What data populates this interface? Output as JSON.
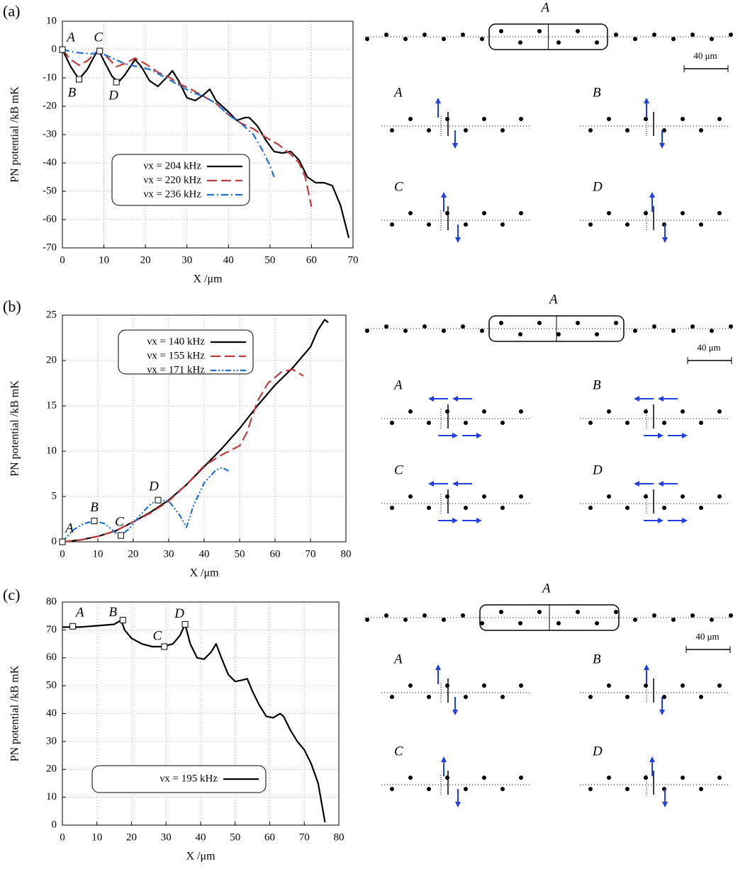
{
  "chart_data": [
    {
      "type": "line",
      "label": "(a)",
      "x_label": "X /μm",
      "y_label": "PN potential /kB mK",
      "xlim": [
        0,
        70
      ],
      "xticks": [
        0,
        10,
        20,
        30,
        40,
        50,
        60,
        70
      ],
      "ylim": [
        -70,
        10
      ],
      "yticks": [
        -70,
        -60,
        -50,
        -40,
        -30,
        -20,
        -10,
        0,
        10
      ],
      "grid": true,
      "series": [
        {
          "name": "νx = 204 kHz",
          "color": "#000000",
          "dash": "solid",
          "x": [
            0,
            2,
            4,
            6,
            8,
            9,
            10,
            12,
            13.5,
            15,
            17.5,
            19,
            21,
            23,
            25,
            26.5,
            28,
            30,
            32,
            34,
            35.5,
            37,
            40,
            42,
            44,
            45,
            47,
            49,
            51,
            53,
            55,
            57,
            59,
            61,
            63,
            65,
            67,
            69
          ],
          "values": [
            0,
            -6,
            -10.5,
            -7,
            -1.5,
            -1,
            -4,
            -9.5,
            -11.5,
            -9,
            -3.5,
            -6,
            -11,
            -13,
            -10,
            -7.5,
            -11,
            -17,
            -18,
            -16,
            -14,
            -18,
            -22,
            -25,
            -24,
            -24,
            -27,
            -32,
            -36,
            -36.5,
            -36,
            -39,
            -45,
            -47,
            -47,
            -48,
            -55,
            -66.5
          ]
        },
        {
          "name": "νx = 220 kHz",
          "color": "#c0393b",
          "dash": "dashed",
          "x": [
            0,
            2,
            4,
            6,
            8,
            9,
            11,
            13,
            15,
            17.5,
            20,
            23,
            26,
            28,
            31,
            34,
            37,
            40,
            43,
            46,
            49,
            52,
            55,
            57,
            58.5,
            60
          ],
          "values": [
            0,
            -3.5,
            -5.5,
            -4,
            -1,
            -0.5,
            -3,
            -6,
            -5,
            -3,
            -5,
            -8,
            -10,
            -12,
            -14,
            -16.5,
            -19,
            -23,
            -26,
            -28,
            -31,
            -33.5,
            -37,
            -40,
            -45,
            -55.5
          ]
        },
        {
          "name": "νx = 236 kHz",
          "color": "#1f6fd0",
          "dash": "dashdot",
          "x": [
            0,
            3,
            7,
            9,
            12,
            15,
            18,
            21,
            25,
            28,
            31,
            34,
            37,
            40,
            43,
            46,
            48,
            50,
            51
          ],
          "values": [
            0,
            -1,
            -1.5,
            -1,
            -3,
            -5,
            -6,
            -7,
            -10,
            -12.5,
            -15,
            -16.5,
            -19,
            -23,
            -26,
            -30,
            -35,
            -41,
            -45
          ]
        }
      ],
      "annotations": [
        {
          "text": "A",
          "x": 0,
          "y": 0
        },
        {
          "text": "B",
          "x": 4,
          "y": -10.5
        },
        {
          "text": "C",
          "x": 9,
          "y": -0.5
        },
        {
          "text": "D",
          "x": 13,
          "y": -11.5
        }
      ]
    },
    {
      "type": "line",
      "label": "(b)",
      "x_label": "X /μm",
      "y_label": "PN potential /kB mK",
      "xlim": [
        0,
        80
      ],
      "xticks": [
        0,
        10,
        20,
        30,
        40,
        50,
        60,
        70,
        80
      ],
      "ylim": [
        0,
        25
      ],
      "yticks": [
        0,
        5,
        10,
        15,
        20,
        25
      ],
      "grid": true,
      "series": [
        {
          "name": "νx = 140 kHz",
          "color": "#000000",
          "dash": "solid",
          "x": [
            0,
            5,
            10,
            15,
            20,
            25,
            30,
            35,
            40,
            45,
            50,
            55,
            60,
            65,
            70,
            72,
            74,
            75
          ],
          "values": [
            0,
            0.2,
            0.6,
            1.2,
            2.2,
            3.3,
            4.6,
            6.3,
            8.3,
            10.3,
            12.5,
            15,
            17.3,
            19.2,
            21.5,
            23.3,
            24.5,
            24.2
          ]
        },
        {
          "name": "νx = 155 kHz",
          "color": "#c0393b",
          "dash": "dashed",
          "x": [
            0,
            5,
            10,
            15,
            20,
            25,
            30,
            35,
            40,
            45,
            50,
            52,
            55,
            58,
            62,
            65,
            68
          ],
          "values": [
            0,
            0.2,
            0.6,
            1.2,
            2.2,
            3.2,
            4.5,
            6.3,
            8.4,
            9.6,
            10.6,
            12,
            15.5,
            17.5,
            18.8,
            19,
            18.3
          ]
        },
        {
          "name": "νx = 171 kHz",
          "color": "#1f6fd0",
          "dash": "dashdotdot",
          "x": [
            0,
            3,
            6,
            9,
            12,
            15,
            16.5,
            19,
            22,
            25,
            27,
            30,
            33,
            35,
            37,
            40,
            43,
            45,
            47
          ],
          "values": [
            0,
            1.3,
            2,
            2.3,
            2,
            1,
            0.7,
            1.5,
            3,
            4.2,
            4.6,
            4.5,
            3,
            1.6,
            4,
            6.5,
            7.8,
            8.2,
            7.8
          ]
        }
      ],
      "annotations": [
        {
          "text": "A",
          "x": 0,
          "y": 0
        },
        {
          "text": "B",
          "x": 9,
          "y": 2.3
        },
        {
          "text": "C",
          "x": 16.5,
          "y": 0.7
        },
        {
          "text": "D",
          "x": 27,
          "y": 4.6
        }
      ]
    },
    {
      "type": "line",
      "label": "(c)",
      "x_label": "X /μm",
      "y_label": "PN potential /kB mK",
      "xlim": [
        0,
        80
      ],
      "xticks": [
        0,
        10,
        20,
        30,
        40,
        50,
        60,
        70,
        80
      ],
      "ylim": [
        0,
        80
      ],
      "yticks": [
        0,
        10,
        20,
        30,
        40,
        50,
        60,
        70,
        80
      ],
      "grid": true,
      "series": [
        {
          "name": "νx = 195 kHz",
          "color": "#000000",
          "dash": "solid",
          "x": [
            0,
            5,
            10,
            15,
            17,
            18,
            20,
            23,
            26,
            29,
            32,
            34,
            35.5,
            37,
            39,
            41,
            43,
            44.5,
            46,
            48,
            50,
            52,
            53.5,
            55,
            57,
            59,
            61,
            63,
            64,
            66,
            68,
            70,
            72,
            74,
            76
          ],
          "values": [
            71,
            71,
            71.5,
            72,
            73.5,
            70,
            67,
            65,
            64,
            64,
            65,
            68,
            72,
            65,
            60,
            59.5,
            62,
            65,
            60,
            54,
            51.5,
            52,
            52.5,
            48,
            43,
            39,
            38.5,
            40,
            39,
            34,
            30,
            27,
            22,
            15,
            1
          ]
        }
      ],
      "annotations": [
        {
          "text": "A",
          "x": 3,
          "y": 71.3
        },
        {
          "text": "B",
          "x": 17.5,
          "y": 73.5
        },
        {
          "text": "C",
          "x": 29.5,
          "y": 64
        },
        {
          "text": "D",
          "x": 35.5,
          "y": 72
        }
      ]
    }
  ],
  "diagrams": [
    {
      "top": "A",
      "scale": "40 μm",
      "configs": [
        "A",
        "B",
        "C",
        "D"
      ]
    },
    {
      "top": "A",
      "scale": "40 μm",
      "configs": [
        "A",
        "B",
        "C",
        "D"
      ]
    },
    {
      "top": "A",
      "scale": "40 μm",
      "configs": [
        "A",
        "B",
        "C",
        "D"
      ]
    }
  ]
}
